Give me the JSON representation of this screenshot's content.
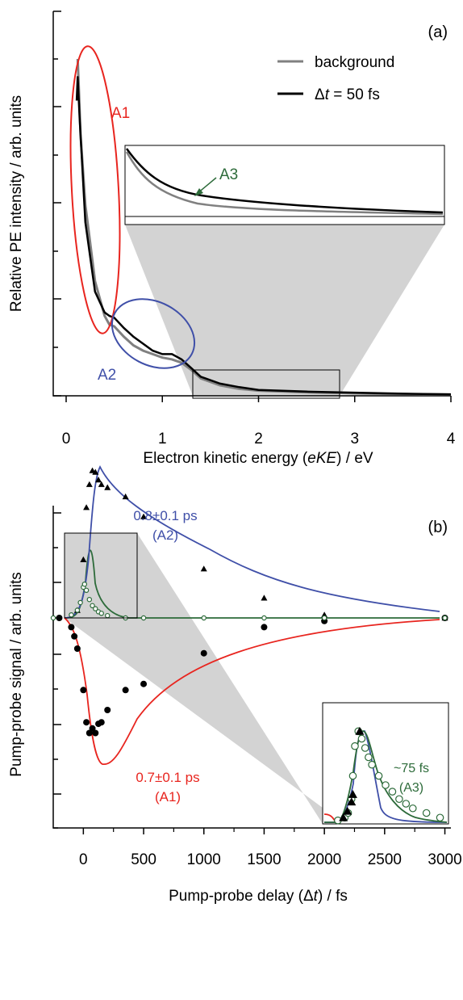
{
  "chart_data": [
    {
      "panel": "(a)",
      "type": "line",
      "xlabel_parts": [
        "Electron kinetic energy (",
        "eKE",
        ") / eV"
      ],
      "ylabel": "Relative PE intensity / arb. units",
      "xlim": [
        0,
        4
      ],
      "x_ticks": [
        0,
        1,
        2,
        3,
        4
      ],
      "y_ticks_unlabeled": true,
      "legend": {
        "placement": "top-right",
        "entries": [
          "background",
          "Δt = 50 fs"
        ]
      },
      "legend_dt_parts": [
        "Δ",
        "t",
        " = 50 fs"
      ],
      "series": [
        {
          "name": "background",
          "color": "#808080",
          "x": [
            0.12,
            0.13,
            0.15,
            0.2,
            0.3,
            0.4,
            0.45,
            0.5,
            0.6,
            0.7,
            0.8,
            0.9,
            1.0,
            1.1,
            1.2,
            1.3,
            1.4,
            1.6,
            1.8,
            2.0,
            2.5,
            3.0,
            3.5,
            4.0
          ],
          "y": [
            0.97,
            0.9,
            0.75,
            0.55,
            0.33,
            0.23,
            0.205,
            0.2,
            0.17,
            0.145,
            0.13,
            0.12,
            0.11,
            0.105,
            0.095,
            0.075,
            0.05,
            0.03,
            0.02,
            0.015,
            0.01,
            0.007,
            0.005,
            0.004
          ]
        },
        {
          "name": "Δt = 50 fs",
          "color": "#000000",
          "x": [
            0.11,
            0.12,
            0.14,
            0.2,
            0.3,
            0.4,
            0.45,
            0.5,
            0.6,
            0.7,
            0.8,
            0.9,
            1.0,
            1.1,
            1.2,
            1.3,
            1.4,
            1.6,
            1.8,
            2.0,
            2.5,
            3.0,
            3.5,
            4.0
          ],
          "y": [
            0.85,
            0.92,
            0.8,
            0.5,
            0.3,
            0.24,
            0.23,
            0.225,
            0.195,
            0.17,
            0.15,
            0.13,
            0.12,
            0.12,
            0.105,
            0.08,
            0.055,
            0.035,
            0.025,
            0.017,
            0.012,
            0.009,
            0.006,
            0.004
          ]
        }
      ],
      "annotations": [
        {
          "label": "A1",
          "color": "#e8251f"
        },
        {
          "label": "A2",
          "color": "#3f4fa8"
        },
        {
          "label": "A3",
          "color": "#2d6b3a"
        }
      ]
    },
    {
      "panel": "(b)",
      "type": "scatter",
      "xlabel_parts": [
        "Pump-probe delay (Δ",
        "t",
        ") / fs"
      ],
      "ylabel": "Pump-probe signal / arb. units",
      "xlim": [
        -250,
        3050
      ],
      "x_ticks": [
        0,
        500,
        1000,
        1500,
        2000,
        2500,
        3000
      ],
      "y_ticks_unlabeled": true,
      "series": [
        {
          "name": "A2",
          "color": "#3f4fa8",
          "marker": "filled-triangle",
          "x": [
            -50,
            0,
            25,
            50,
            75,
            100,
            125,
            150,
            200,
            350,
            500,
            1000,
            1500,
            2000,
            3000
          ],
          "y": [
            0.05,
            0.38,
            0.72,
            0.87,
            0.96,
            0.95,
            0.9,
            0.87,
            0.85,
            0.79,
            0.66,
            0.32,
            0.13,
            0.02,
            0.0
          ]
        },
        {
          "name": "A1",
          "color": "#e8251f",
          "marker": "filled-circle",
          "x": [
            -200,
            -100,
            -75,
            -50,
            0,
            25,
            50,
            75,
            100,
            125,
            150,
            200,
            350,
            500,
            1000,
            1500,
            2000,
            3000
          ],
          "y": [
            0.0,
            -0.06,
            -0.12,
            -0.2,
            -0.47,
            -0.68,
            -0.75,
            -0.72,
            -0.75,
            -0.69,
            -0.68,
            -0.6,
            -0.47,
            -0.43,
            -0.23,
            -0.06,
            -0.02,
            0.0
          ]
        },
        {
          "name": "A3",
          "color": "#2d6b3a",
          "marker": "open-circle",
          "x": [
            -250,
            -100,
            -50,
            -25,
            0,
            10,
            25,
            50,
            75,
            100,
            125,
            150,
            200,
            350,
            500,
            1000,
            1500,
            2000,
            3000
          ],
          "y": [
            0.0,
            0.02,
            0.05,
            0.1,
            0.2,
            0.22,
            0.18,
            0.12,
            0.08,
            0.06,
            0.04,
            0.03,
            0.015,
            0.0,
            0.0,
            0.0,
            0.0,
            0.0,
            0.0
          ]
        }
      ],
      "annotations": [
        {
          "lines": [
            "0.8±0.1 ps",
            "(A2)"
          ],
          "color": "#3f4fa8"
        },
        {
          "lines": [
            "0.7±0.1 ps",
            "(A1)"
          ],
          "color": "#e8251f"
        },
        {
          "lines": [
            "~75 fs",
            "(A3)"
          ],
          "color": "#2d6b3a"
        }
      ]
    }
  ]
}
